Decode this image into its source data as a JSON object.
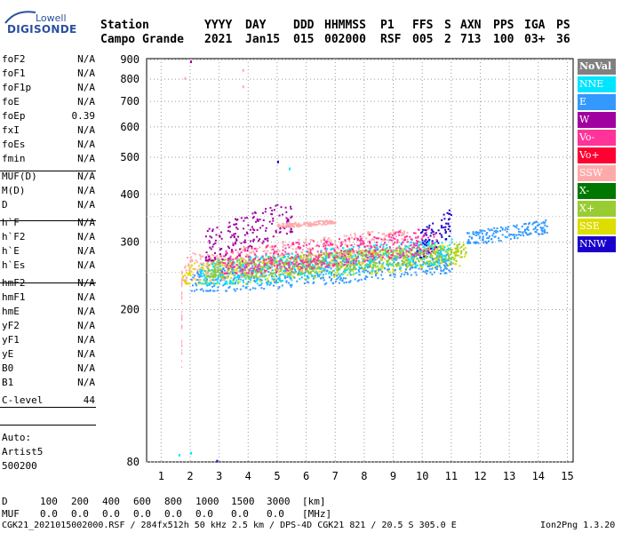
{
  "logo": {
    "top": "Lowell",
    "main": "DIGISONDE"
  },
  "header": {
    "row1": [
      "Station",
      "YYYY",
      "DAY",
      "DDD",
      "HHMMSS",
      "P1",
      "FFS",
      "S",
      "AXN",
      "PPS",
      "IGA",
      "PS"
    ],
    "row2": [
      "Campo Grande",
      "2021",
      "Jan15",
      "015",
      "002000",
      "RSF",
      "005",
      "2",
      "713",
      "100",
      "03+",
      "36"
    ]
  },
  "params": [
    {
      "name": "foF2",
      "value": "N/A"
    },
    {
      "name": "foF1",
      "value": "N/A"
    },
    {
      "name": "foF1p",
      "value": "N/A"
    },
    {
      "name": "foE",
      "value": "N/A"
    },
    {
      "name": "foEp",
      "value": "0.39"
    },
    {
      "name": "fxI",
      "value": "N/A"
    },
    {
      "name": "foEs",
      "value": "N/A"
    },
    {
      "name": "fmin",
      "value": "N/A"
    },
    {
      "name": "MUF(D)",
      "value": "N/A"
    },
    {
      "name": "M(D)",
      "value": "N/A"
    },
    {
      "name": "D",
      "value": "N/A"
    },
    {
      "name": "h`F",
      "value": "N/A"
    },
    {
      "name": "h`F2",
      "value": "N/A"
    },
    {
      "name": "h`E",
      "value": "N/A"
    },
    {
      "name": "h`Es",
      "value": "N/A"
    },
    {
      "name": "hmF2",
      "value": "N/A"
    },
    {
      "name": "hmF1",
      "value": "N/A"
    },
    {
      "name": "hmE",
      "value": "N/A"
    },
    {
      "name": "yF2",
      "value": "N/A"
    },
    {
      "name": "yF1",
      "value": "N/A"
    },
    {
      "name": "yE",
      "value": "N/A"
    },
    {
      "name": "B0",
      "value": "N/A"
    },
    {
      "name": "B1",
      "value": "N/A"
    },
    {
      "name": "C-level",
      "value": "44"
    }
  ],
  "auto": {
    "label": "Auto:",
    "artist": "Artist5",
    "version": "500200"
  },
  "legend": [
    {
      "label": "NoVal",
      "color": "#808080"
    },
    {
      "label": "NNE",
      "color": "#00e5ff"
    },
    {
      "label": "E",
      "color": "#3399ff"
    },
    {
      "label": "W",
      "color": "#a000a0"
    },
    {
      "label": "Vo-",
      "color": "#ff3399"
    },
    {
      "label": "Vo+",
      "color": "#ff0033"
    },
    {
      "label": "SSW",
      "color": "#ffaaaa"
    },
    {
      "label": "X-",
      "color": "#007700"
    },
    {
      "label": "X+",
      "color": "#99cc33"
    },
    {
      "label": "SSE",
      "color": "#dddd00"
    },
    {
      "label": "NNW",
      "color": "#1a00cc"
    }
  ],
  "chart_data": {
    "type": "scatter",
    "title": "",
    "xlabel": "",
    "ylabel": "",
    "x_ticks": [
      1,
      2,
      3,
      4,
      5,
      6,
      7,
      8,
      9,
      10,
      11,
      12,
      13,
      14,
      15
    ],
    "y_ticks": [
      80,
      200,
      300,
      400,
      500,
      600,
      700,
      800,
      900
    ],
    "xlim": [
      0.5,
      15.2
    ],
    "ylim": [
      80,
      905
    ],
    "y_scale": "log",
    "grid": "dotted",
    "clusters": [
      {
        "series": "SSE",
        "x": [
          1.7,
          11.5
        ],
        "y": [
          235,
          300
        ]
      },
      {
        "series": "SSW",
        "x": [
          1.7,
          9.5
        ],
        "y": [
          240,
          330
        ]
      },
      {
        "series": "E",
        "x": [
          2.0,
          11.0
        ],
        "y": [
          225,
          290
        ]
      },
      {
        "series": "NNE",
        "x": [
          2.3,
          11.0
        ],
        "y": [
          235,
          310
        ]
      },
      {
        "series": "X+",
        "x": [
          2.5,
          11.5
        ],
        "y": [
          245,
          300
        ]
      },
      {
        "series": "W",
        "x": [
          2.5,
          5.5
        ],
        "y": [
          270,
          390
        ]
      },
      {
        "series": "NNW",
        "x": [
          9.8,
          11.0
        ],
        "y": [
          275,
          370
        ]
      },
      {
        "series": "E",
        "x": [
          11.5,
          14.3
        ],
        "y": [
          300,
          345
        ]
      },
      {
        "series": "Vo-",
        "x": [
          3.0,
          10.5
        ],
        "y": [
          250,
          330
        ]
      },
      {
        "series": "SSW",
        "x": [
          5.0,
          7.0
        ],
        "y": [
          330,
          345
        ]
      }
    ],
    "outliers": [
      {
        "series": "W",
        "x": 2.0,
        "y": 895
      },
      {
        "series": "SSW",
        "x": 1.8,
        "y": 810
      },
      {
        "series": "SSW",
        "x": 3.8,
        "y": 850
      },
      {
        "series": "SSW",
        "x": 3.8,
        "y": 770
      },
      {
        "series": "NNE",
        "x": 5.4,
        "y": 470
      },
      {
        "series": "NNW",
        "x": 5.0,
        "y": 490
      },
      {
        "series": "NNE",
        "x": 2.0,
        "y": 85
      },
      {
        "series": "NNE",
        "x": 1.6,
        "y": 84
      },
      {
        "series": "NNW",
        "x": 2.9,
        "y": 81
      }
    ]
  },
  "footer": {
    "d_label": "D",
    "d_values": [
      "100",
      "200",
      "400",
      "600",
      "800",
      "1000",
      "1500",
      "3000",
      "[km]"
    ],
    "muf_label": "MUF",
    "muf_values": [
      "0.0",
      "0.0",
      "0.0",
      "0.0",
      "0.0",
      "0.0",
      "0.0",
      "0.0",
      "[MHz]"
    ],
    "info": "CGK21_2021015002000.RSF / 284fx512h 50 kHz 2.5 km / DPS-4D CGK21 821 / 20.5 S 305.0 E",
    "version": "Ion2Png 1.3.20"
  }
}
